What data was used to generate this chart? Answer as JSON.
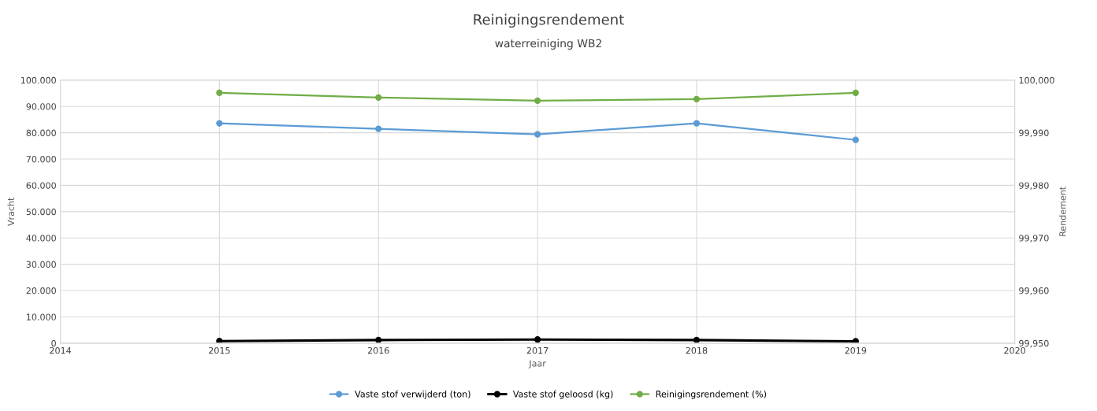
{
  "chart_data": {
    "type": "line",
    "title": "Reinigingsrendement",
    "subtitle": "waterreiniging WB2",
    "xlabel": "Jaar",
    "ylabel": "Vracht",
    "y2label": "Rendement",
    "x": [
      2015,
      2016,
      2017,
      2018,
      2019
    ],
    "series": [
      {
        "name": "Vaste stof verwijderd (ton)",
        "color": "#5b9bd5",
        "values": [
          83600,
          81500,
          79400,
          83600,
          77300
        ]
      },
      {
        "name": "Vaste stof geloosd (kg)",
        "color": "#000000",
        "values": [
          800,
          1200,
          1400,
          1200,
          700
        ]
      },
      {
        "name": "Reinigingsrendement (%)",
        "color": "#70ad47",
        "axis": "y2",
        "values": [
          99.9976,
          99.9967,
          99.9961,
          99.9964,
          99.9976
        ]
      }
    ],
    "xlim": [
      2014,
      2020
    ],
    "xticks": [
      2014,
      2015,
      2016,
      2017,
      2018,
      2019,
      2020
    ],
    "ylim": [
      0,
      100000
    ],
    "yticks": [
      0,
      {
        "value": 10000,
        "label": "10.000"
      },
      {
        "value": 20000,
        "label": "20.000"
      },
      {
        "value": 30000,
        "label": "30.000"
      },
      {
        "value": 40000,
        "label": "40.000"
      },
      {
        "value": 50000,
        "label": "50.000"
      },
      {
        "value": 60000,
        "label": "60.000"
      },
      {
        "value": 70000,
        "label": "70.000"
      },
      {
        "value": 80000,
        "label": "80.000"
      },
      {
        "value": 90000,
        "label": "90.000"
      },
      {
        "value": 100000,
        "label": "100.000"
      }
    ],
    "y2lim": [
      99.95,
      100
    ],
    "y2ticks": [
      {
        "value": 99.95,
        "label": "99,950"
      },
      {
        "value": 99.96,
        "label": "99,960"
      },
      {
        "value": 99.97,
        "label": "99,970"
      },
      {
        "value": 99.98,
        "label": "99,980"
      },
      {
        "value": 99.99,
        "label": "99,990"
      },
      {
        "value": 100,
        "label": "100,000"
      }
    ],
    "grid": true,
    "legend": "bottom",
    "marker": "circle",
    "line_style": "solid"
  }
}
